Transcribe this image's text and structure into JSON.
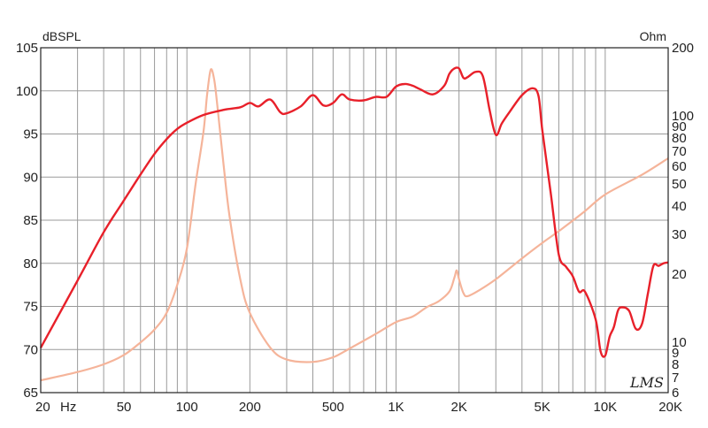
{
  "chart_data": {
    "type": "line",
    "x_scale": "log",
    "xlim": [
      20,
      20000
    ],
    "ylim": [
      65,
      105
    ],
    "y2_scale": "log",
    "y2lim": [
      6,
      200
    ],
    "grid": true,
    "left_unit": "dBSPL",
    "right_unit": "Ohm",
    "brand": "LMS",
    "x_ticks": [
      {
        "value": 20,
        "label": "20"
      },
      {
        "value": 50,
        "label": "50"
      },
      {
        "value": 100,
        "label": "100"
      },
      {
        "value": 200,
        "label": "200"
      },
      {
        "value": 500,
        "label": "500"
      },
      {
        "value": 1000,
        "label": "1K"
      },
      {
        "value": 2000,
        "label": "2K"
      },
      {
        "value": 5000,
        "label": "5K"
      },
      {
        "value": 10000,
        "label": "10K"
      },
      {
        "value": 20000,
        "label": "20K"
      }
    ],
    "x_unit_label": "Hz",
    "y_ticks": [
      65,
      70,
      75,
      80,
      85,
      90,
      95,
      100,
      105
    ],
    "y2_ticks": [
      6,
      7,
      8,
      9,
      10,
      20,
      30,
      40,
      50,
      60,
      70,
      80,
      90,
      100,
      200
    ],
    "colors": {
      "spl": "#e8202a",
      "impedance": "#f5b49a",
      "grid": "#9a9a9a"
    },
    "series": [
      {
        "axis": "left",
        "x": [
          20,
          30,
          40,
          50,
          60,
          70,
          80,
          90,
          100,
          120,
          150,
          180,
          200,
          220,
          250,
          280,
          300,
          350,
          400,
          450,
          500,
          550,
          600,
          700,
          800,
          900,
          1000,
          1100,
          1200,
          1300,
          1500,
          1700,
          1800,
          1900,
          2000,
          2100,
          2200,
          2400,
          2600,
          2800,
          3000,
          3200,
          3500,
          4000,
          4500,
          4800,
          5000,
          5500,
          6000,
          6500,
          7000,
          7500,
          8000,
          9000,
          9500,
          10000,
          10500,
          11000,
          11500,
          12000,
          13000,
          14000,
          15000,
          16000,
          17000,
          18000,
          19000,
          20000
        ],
        "values": [
          70.2,
          78,
          83.6,
          87.3,
          90.3,
          92.7,
          94.4,
          95.6,
          96.3,
          97.2,
          97.8,
          98.1,
          98.6,
          98.2,
          99,
          97.5,
          97.4,
          98.2,
          99.5,
          98.3,
          98.6,
          99.6,
          99,
          98.9,
          99.3,
          99.3,
          100.5,
          100.8,
          100.6,
          100.2,
          99.6,
          100.6,
          102,
          102.6,
          102.6,
          101.5,
          101.6,
          102.2,
          101.7,
          97.8,
          94.9,
          96.2,
          97.6,
          99.5,
          100.3,
          99.4,
          95.5,
          88,
          81,
          79.6,
          78.5,
          76.7,
          76.7,
          73.5,
          69.8,
          69.3,
          71.5,
          72.6,
          74.5,
          74.9,
          74.5,
          72.4,
          73,
          76.5,
          79.7,
          79.7,
          80,
          80.1
        ]
      },
      {
        "axis": "right",
        "x": [
          20,
          30,
          40,
          50,
          60,
          70,
          80,
          90,
          100,
          110,
          120,
          125,
          130,
          135,
          140,
          150,
          160,
          180,
          200,
          250,
          300,
          400,
          500,
          600,
          800,
          1000,
          1200,
          1400,
          1600,
          1800,
          1900,
          1950,
          2000,
          2100,
          2200,
          2500,
          3000,
          4000,
          5000,
          6000,
          8000,
          10000,
          15000,
          20000
        ],
        "values": [
          6.8,
          7.4,
          8,
          8.8,
          10,
          11.4,
          13.5,
          18,
          26,
          50,
          85,
          125,
          160,
          145,
          110,
          60,
          36,
          19,
          13.5,
          9.5,
          8.4,
          8.2,
          8.6,
          9.4,
          10.9,
          12.3,
          13,
          14.3,
          15.2,
          16.8,
          19.3,
          20.8,
          19,
          16.5,
          16,
          17,
          19,
          23.5,
          27.5,
          31,
          38,
          45,
          55,
          65
        ]
      }
    ]
  }
}
